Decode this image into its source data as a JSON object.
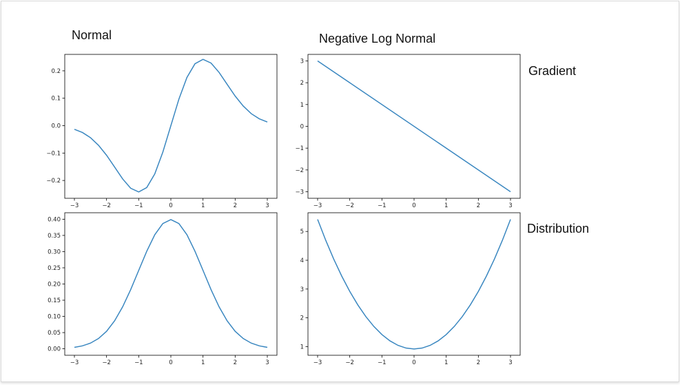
{
  "labels": {
    "normal": "Normal",
    "neg_log_normal": "Negative Log Normal",
    "gradient": "Gradient",
    "distribution": "Distribution"
  },
  "colors": {
    "line": "#3a87c0",
    "axes": "#000000"
  },
  "chart_data": [
    {
      "id": "gradient-normal",
      "type": "line",
      "title": "",
      "xlim": [
        -3.3,
        3.3
      ],
      "ylim": [
        -0.265,
        0.26
      ],
      "xticks": [
        -3,
        -2,
        -1,
        0,
        1,
        2,
        3
      ],
      "yticks": [
        -0.2,
        -0.1,
        0.0,
        0.1,
        0.2
      ],
      "xtick_labels": [
        "−3",
        "−2",
        "−1",
        "0",
        "1",
        "2",
        "3"
      ],
      "ytick_labels": [
        "−0.2",
        "−0.1",
        "0.0",
        "0.1",
        "0.2"
      ],
      "series": [
        {
          "x": [
            -3,
            -2.75,
            -2.5,
            -2.25,
            -2,
            -1.75,
            -1.5,
            -1.25,
            -1,
            -0.75,
            -0.5,
            -0.25,
            0,
            0.25,
            0.5,
            0.75,
            1,
            1.25,
            1.5,
            1.75,
            2,
            2.25,
            2.5,
            2.75,
            3
          ],
          "y": [
            -0.0133,
            -0.025,
            -0.0438,
            -0.0717,
            -0.108,
            -0.1508,
            -0.1943,
            -0.2283,
            -0.242,
            -0.2259,
            -0.176,
            -0.0967,
            0,
            0.0967,
            0.176,
            0.2259,
            0.242,
            0.2283,
            0.1943,
            0.1508,
            0.108,
            0.0717,
            0.0438,
            0.025,
            0.0133
          ]
        }
      ]
    },
    {
      "id": "gradient-neg-log-normal",
      "type": "line",
      "title": "",
      "xlim": [
        -3.3,
        3.3
      ],
      "ylim": [
        -3.3,
        3.3
      ],
      "xticks": [
        -3,
        -2,
        -1,
        0,
        1,
        2,
        3
      ],
      "yticks": [
        -3,
        -2,
        -1,
        0,
        1,
        2,
        3
      ],
      "xtick_labels": [
        "−3",
        "−2",
        "−1",
        "0",
        "1",
        "2",
        "3"
      ],
      "ytick_labels": [
        "−3",
        "−2",
        "−1",
        "0",
        "1",
        "2",
        "3"
      ],
      "series": [
        {
          "x": [
            -3,
            3
          ],
          "y": [
            3,
            -3
          ]
        }
      ]
    },
    {
      "id": "distribution-normal",
      "type": "line",
      "title": "",
      "xlim": [
        -3.3,
        3.3
      ],
      "ylim": [
        -0.02,
        0.42
      ],
      "xticks": [
        -3,
        -2,
        -1,
        0,
        1,
        2,
        3
      ],
      "yticks": [
        0.0,
        0.05,
        0.1,
        0.15,
        0.2,
        0.25,
        0.3,
        0.35,
        0.4
      ],
      "xtick_labels": [
        "−3",
        "−2",
        "−1",
        "0",
        "1",
        "2",
        "3"
      ],
      "ytick_labels": [
        "0.00",
        "0.05",
        "0.10",
        "0.15",
        "0.20",
        "0.25",
        "0.30",
        "0.35",
        "0.40"
      ],
      "series": [
        {
          "x": [
            -3,
            -2.75,
            -2.5,
            -2.25,
            -2,
            -1.75,
            -1.5,
            -1.25,
            -1,
            -0.75,
            -0.5,
            -0.25,
            0,
            0.25,
            0.5,
            0.75,
            1,
            1.25,
            1.5,
            1.75,
            2,
            2.25,
            2.5,
            2.75,
            3
          ],
          "y": [
            0.0044,
            0.0091,
            0.0175,
            0.0317,
            0.054,
            0.0863,
            0.1295,
            0.1826,
            0.242,
            0.3011,
            0.3521,
            0.3867,
            0.3989,
            0.3867,
            0.3521,
            0.3011,
            0.242,
            0.1826,
            0.1295,
            0.0863,
            0.054,
            0.0317,
            0.0175,
            0.0091,
            0.0044
          ]
        }
      ]
    },
    {
      "id": "distribution-neg-log-normal",
      "type": "line",
      "title": "",
      "xlim": [
        -3.3,
        3.3
      ],
      "ylim": [
        0.7,
        5.65
      ],
      "xticks": [
        -3,
        -2,
        -1,
        0,
        1,
        2,
        3
      ],
      "yticks": [
        1,
        2,
        3,
        4,
        5
      ],
      "xtick_labels": [
        "−3",
        "−2",
        "−1",
        "0",
        "1",
        "2",
        "3"
      ],
      "ytick_labels": [
        "1",
        "2",
        "3",
        "4",
        "5"
      ],
      "series": [
        {
          "x": [
            -3,
            -2.75,
            -2.5,
            -2.25,
            -2,
            -1.75,
            -1.5,
            -1.25,
            -1,
            -0.75,
            -0.5,
            -0.25,
            0,
            0.25,
            0.5,
            0.75,
            1,
            1.25,
            1.5,
            1.75,
            2,
            2.25,
            2.5,
            2.75,
            3
          ],
          "y": [
            5.419,
            4.7,
            4.044,
            3.45,
            2.919,
            2.45,
            2.044,
            1.7,
            1.419,
            1.2,
            1.044,
            0.95,
            0.919,
            0.95,
            1.044,
            1.2,
            1.419,
            1.7,
            2.044,
            2.45,
            2.919,
            3.45,
            4.044,
            4.7,
            5.419
          ]
        }
      ]
    }
  ]
}
